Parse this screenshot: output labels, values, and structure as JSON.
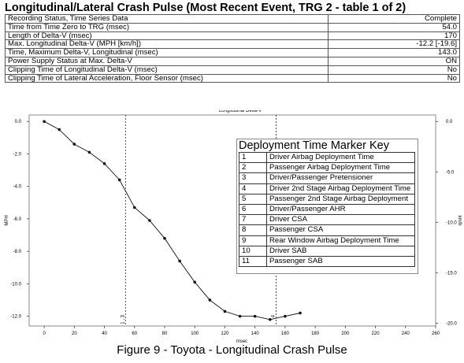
{
  "header": {
    "title": "Longitudinal/Lateral Crash Pulse (Most Recent Event, TRG 2 - table 1 of 2)"
  },
  "info_rows": [
    {
      "label": "Recording Status, Time Series Data",
      "value": "Complete"
    },
    {
      "label": "Time from Time Zero to TRG (msec)",
      "value": "54.0"
    },
    {
      "label": "Length of Delta-V (msec)",
      "value": "170"
    },
    {
      "label": "Max. Longitudinal Delta-V (MPH [km/h])",
      "value": "-12.2 [-19.6]"
    },
    {
      "label": "Time, Maximum Delta-V, Longitudinal (msec)",
      "value": "143.0"
    },
    {
      "label": "Power Supply Status at Max. Delta-V",
      "value": "ON"
    },
    {
      "label": "Clipping Time of Longitudinal Delta-V (msec)",
      "value": "No"
    },
    {
      "label": "Clipping Time of Lateral Acceleration, Floor Sensor (msec)",
      "value": "No"
    }
  ],
  "chart_data": {
    "type": "line",
    "title": "Longitudinal Delta-V",
    "xlabel": "msec",
    "ylabel": "MPH",
    "y2label": "km/h",
    "xlim": [
      -10,
      260
    ],
    "ylim": [
      -12.6,
      0.4
    ],
    "x_ticks": [
      0,
      20,
      40,
      60,
      80,
      100,
      120,
      140,
      160,
      180,
      200,
      220,
      240,
      260
    ],
    "x_tick_labels": [
      "0",
      "20",
      "40",
      "60",
      "80",
      "100",
      "120",
      "140",
      "160",
      "180",
      "200",
      "220",
      "240",
      "260"
    ],
    "y_ticks": [
      0,
      -2,
      -4,
      -6,
      -8,
      -10,
      -12
    ],
    "y_tick_labels": [
      "0.0",
      "-2.0",
      "-4.0",
      "-6.0",
      "-8.0",
      "-10.0",
      "-12.0"
    ],
    "y2_ticks": [
      0,
      -5,
      -10,
      -15,
      -20
    ],
    "y2_tick_labels": [
      "0.0",
      "-5.0",
      "-10.0",
      "-15.0",
      "-20.0"
    ],
    "series": [
      {
        "x": [
          0,
          10,
          20,
          30,
          40,
          50,
          60,
          70,
          80,
          90,
          100,
          110,
          120,
          130,
          140,
          150,
          160,
          170
        ],
        "values": [
          0.0,
          -0.5,
          -1.4,
          -1.9,
          -2.6,
          -3.6,
          -5.3,
          -6.1,
          -7.2,
          -8.6,
          -9.9,
          -11.0,
          -11.7,
          -12.0,
          -12.0,
          -12.2,
          -12.0,
          -11.8
        ]
      }
    ],
    "markers": [
      {
        "x": 54,
        "label": "1 , 3"
      },
      {
        "x": 154,
        "label": "4"
      }
    ],
    "grid": false
  },
  "key": {
    "title": "Deployment Time Marker Key",
    "rows": [
      {
        "n": "1",
        "label": "Driver Airbag Deployment Time"
      },
      {
        "n": "2",
        "label": "Passenger Airbag Deployment Time"
      },
      {
        "n": "3",
        "label": "Driver/Passenger Pretensioner"
      },
      {
        "n": "4",
        "label": "Driver 2nd Stage Airbag Deployment Time"
      },
      {
        "n": "5",
        "label": "Passenger 2nd Stage Airbag Deployment"
      },
      {
        "n": "6",
        "label": "Driver/Passenger AHR"
      },
      {
        "n": "7",
        "label": "Driver CSA"
      },
      {
        "n": "8",
        "label": "Passenger CSA"
      },
      {
        "n": "9",
        "label": "Rear Window Airbag Deployment Time"
      },
      {
        "n": "10",
        "label": "Driver SAB"
      },
      {
        "n": "11",
        "label": "Passenger SAB"
      }
    ]
  },
  "caption": "Figure 9 - Toyota - Longitudinal Crash Pulse"
}
